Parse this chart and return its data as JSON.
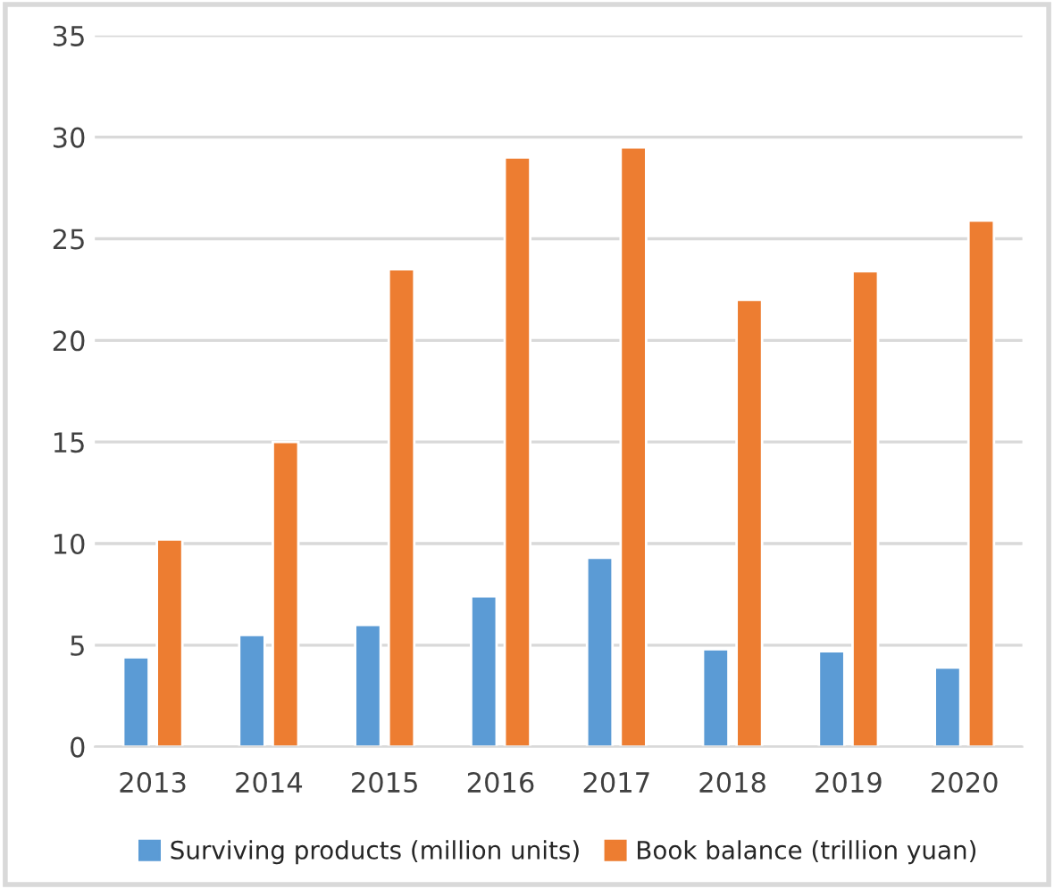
{
  "chart_data": {
    "type": "bar",
    "categories": [
      "2013",
      "2014",
      "2015",
      "2016",
      "2017",
      "2018",
      "2019",
      "2020"
    ],
    "series": [
      {
        "name": "Surviving products (million units)",
        "color": "#5b9bd5",
        "values": [
          4.4,
          5.5,
          6.0,
          7.4,
          9.3,
          4.8,
          4.7,
          3.9
        ]
      },
      {
        "name": "Book balance (trillion yuan)",
        "color": "#ed7d31",
        "values": [
          10.2,
          15.0,
          23.5,
          29.0,
          29.5,
          22.0,
          23.4,
          25.9
        ]
      }
    ],
    "ylim": [
      0,
      35
    ],
    "yticks": [
      0,
      5,
      10,
      15,
      20,
      25,
      30,
      35
    ],
    "grid": "y",
    "legend": "bottom"
  }
}
